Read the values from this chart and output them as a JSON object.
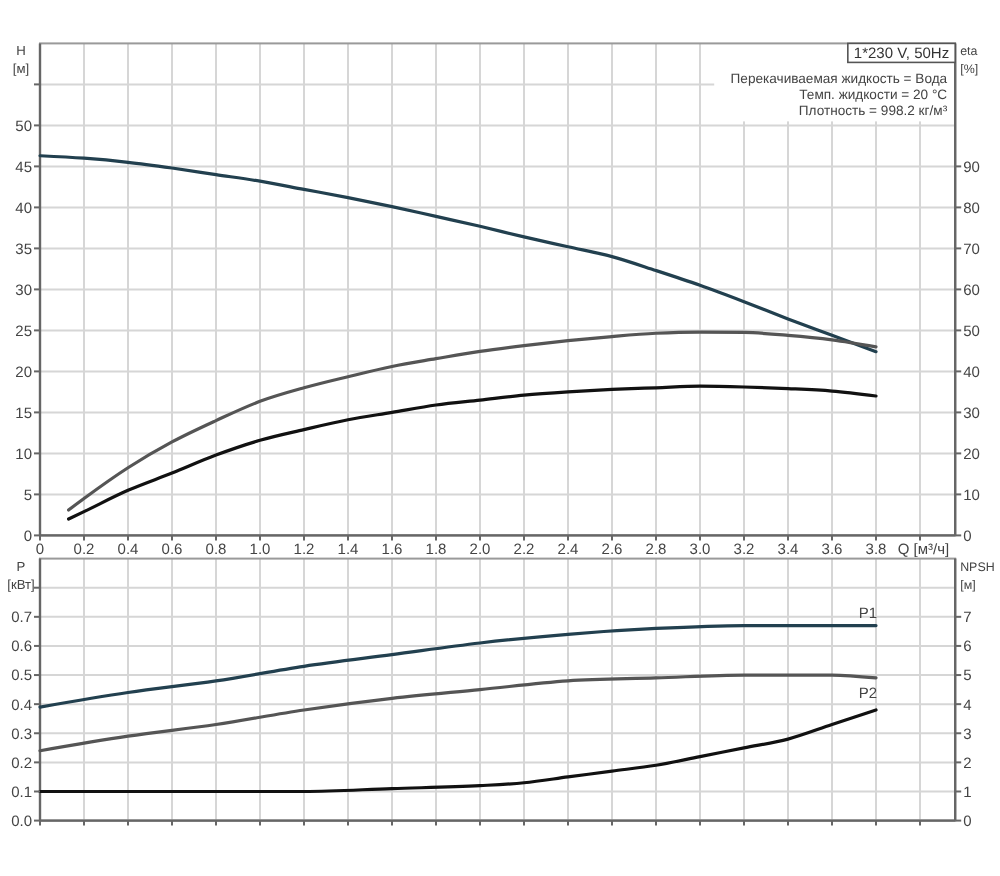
{
  "chart_data": [
    {
      "type": "line",
      "title": "1*230 V, 50Hz",
      "annotations": [
        "Перекачиваемая жидкость = Вода",
        "Темп. жидкости = 20 °C",
        "Плотность = 998.2 кг/м³"
      ],
      "xlabel": "Q [м³/ч]",
      "ylabel": "H [м]",
      "y2label": "eta [%]",
      "xlim": [
        0,
        4.16
      ],
      "xticks": [
        0,
        0.2,
        0.4,
        0.6,
        0.8,
        {
          "value": 1,
          "label": "1.0"
        },
        1.2,
        1.4,
        1.6,
        1.8,
        {
          "value": 2,
          "label": "2.0"
        },
        2.2,
        2.4,
        2.6,
        2.8,
        {
          "value": 3,
          "label": "3.0"
        },
        3.2,
        3.4,
        3.6,
        3.8,
        {
          "value": 4,
          "label": null
        }
      ],
      "ylim": [
        0,
        60
      ],
      "yticks": [
        0,
        5,
        10,
        15,
        20,
        25,
        30,
        35,
        40,
        45,
        50,
        {
          "value": 55,
          "label": null
        }
      ],
      "y2lim": [
        0,
        120
      ],
      "y2ticks": [
        0,
        10,
        20,
        30,
        40,
        50,
        60,
        70,
        80,
        90
      ],
      "grid": true,
      "series": [
        {
          "color": "#22404f",
          "x": [
            0,
            0.2,
            0.4,
            0.6,
            0.8,
            1.0,
            1.2,
            1.4,
            1.6,
            1.8,
            2.0,
            2.2,
            2.4,
            2.6,
            2.8,
            3.0,
            3.2,
            3.4,
            3.6,
            3.8
          ],
          "values": [
            46.3,
            46.0,
            45.5,
            44.8,
            44.0,
            43.2,
            42.2,
            41.2,
            40.1,
            38.9,
            37.7,
            36.4,
            35.2,
            34.0,
            32.3,
            30.5,
            28.5,
            26.4,
            24.4,
            22.4
          ]
        },
        {
          "color": "#555555",
          "axis": "y2",
          "x": [
            0.13,
            0.2,
            0.4,
            0.6,
            0.8,
            1.0,
            1.2,
            1.4,
            1.6,
            1.8,
            2.0,
            2.2,
            2.4,
            2.6,
            2.8,
            3.0,
            3.2,
            3.4,
            3.6,
            3.8
          ],
          "values": [
            6.2,
            9.0,
            16.5,
            22.8,
            28,
            32.7,
            36,
            38.7,
            41.2,
            43.1,
            44.9,
            46.3,
            47.5,
            48.5,
            49.3,
            49.6,
            49.5,
            48.8,
            47.7,
            46
          ]
        },
        {
          "color": "#111111",
          "axis": "y2",
          "x": [
            0.13,
            0.2,
            0.4,
            0.6,
            0.8,
            1.0,
            1.2,
            1.4,
            1.6,
            1.8,
            2.0,
            2.2,
            2.4,
            2.6,
            2.8,
            3.0,
            3.2,
            3.4,
            3.6,
            3.8
          ],
          "values": [
            4.0,
            5.8,
            11,
            15.2,
            19.6,
            23.2,
            25.8,
            28.2,
            30,
            31.8,
            33,
            34.2,
            35,
            35.6,
            36,
            36.4,
            36.2,
            35.8,
            35.2,
            34
          ]
        }
      ]
    },
    {
      "type": "line",
      "ylabel": "P [кВт]",
      "y2label": "NPSH [м]",
      "tick_labels": "y",
      "xlim": [
        0,
        4.16
      ],
      "xticks": [
        0,
        0.2,
        0.4,
        0.6,
        0.8,
        1,
        1.2,
        1.4,
        1.6,
        1.8,
        2,
        2.2,
        2.4,
        2.6,
        2.8,
        3,
        3.2,
        3.4,
        3.6,
        3.8,
        4
      ],
      "ylim": [
        0,
        0.9
      ],
      "yticks": [
        {
          "value": 0,
          "label": "0.0"
        },
        0.1,
        0.2,
        0.3,
        0.4,
        0.5,
        0.6,
        0.7,
        {
          "value": 0.8,
          "label": null
        }
      ],
      "y2lim": [
        0,
        9
      ],
      "y2ticks": [
        0,
        1,
        2,
        3,
        4,
        5,
        6,
        7
      ],
      "grid": true,
      "series": [
        {
          "name": "P1",
          "color": "#22404f",
          "x": [
            0,
            0.4,
            0.8,
            1.2,
            1.6,
            2.0,
            2.4,
            2.8,
            3.2,
            3.6,
            3.8
          ],
          "values": [
            0.39,
            0.44,
            0.48,
            0.53,
            0.57,
            0.61,
            0.64,
            0.66,
            0.67,
            0.67,
            0.67
          ]
        },
        {
          "name": "P2",
          "color": "#555555",
          "x": [
            0,
            0.4,
            0.8,
            1.2,
            1.6,
            2.0,
            2.4,
            2.8,
            3.2,
            3.6,
            3.8
          ],
          "values": [
            0.24,
            0.29,
            0.33,
            0.38,
            0.42,
            0.45,
            0.48,
            0.49,
            0.5,
            0.5,
            0.49
          ]
        },
        {
          "color": "#111111",
          "axis": "y2",
          "x": [
            0,
            0.4,
            0.8,
            1.2,
            1.6,
            2.0,
            2.2,
            2.4,
            2.6,
            2.8,
            3.0,
            3.2,
            3.4,
            3.6,
            3.8
          ],
          "values": [
            1.0,
            1.0,
            1.0,
            1.0,
            1.1,
            1.2,
            1.3,
            1.5,
            1.7,
            1.9,
            2.2,
            2.5,
            2.8,
            3.3,
            3.8
          ]
        }
      ]
    }
  ]
}
